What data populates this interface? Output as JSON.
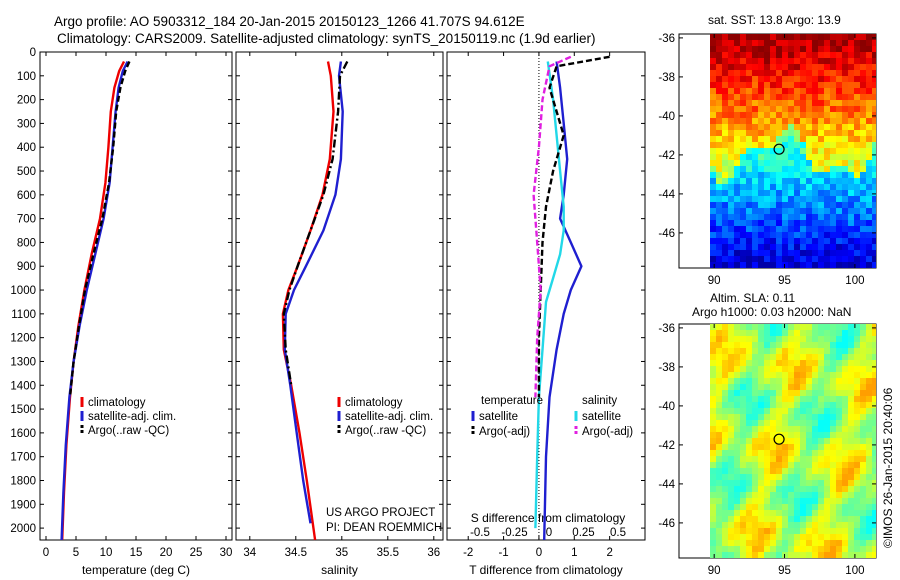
{
  "title_line1": "Argo profile: AO 5903312_184 20-Jan-2015 20150123_1266 41.707S 94.612E",
  "title_line2": "Climatology: CARS2009. Satellite-adjusted climatology: synTS_20150119.nc (1.9d earlier)",
  "credit_line1": "US ARGO PROJECT",
  "credit_line2": "PI: DEAN ROEMMICH",
  "timestamp": "©IMOS 26-Jan-2015 20:40:06",
  "sst_title": "sat. SST: 13.8 Argo: 13.9",
  "sla_title1": "Altim. SLA: 0.11",
  "sla_title2": "Argo h1000: 0.03 h2000: NaN",
  "colors": {
    "climatology": "#ee0000",
    "satellite": "#1f1fd0",
    "argo": "#000000",
    "sal_satellite": "#22d8e8",
    "sal_argo": "#e020e0"
  },
  "chart_data": [
    {
      "type": "line",
      "xlabel": "temperature (deg C)",
      "xlim": [
        -1,
        31
      ],
      "xticks": [
        0,
        5,
        10,
        15,
        20,
        25,
        30
      ],
      "ylim": [
        0,
        2050
      ],
      "yticks": [
        0,
        100,
        200,
        300,
        400,
        500,
        600,
        700,
        800,
        900,
        1000,
        1100,
        1200,
        1300,
        1400,
        1500,
        1600,
        1700,
        1800,
        1900,
        2000
      ],
      "legend": {
        "placement": "lower-middle",
        "entries": [
          "climatology",
          "satellite-adj. clim.",
          "Argo(..raw -QC)"
        ]
      },
      "series": [
        {
          "name": "climatology",
          "color": "#ee0000",
          "dash": "",
          "points": [
            [
              13.0,
              40
            ],
            [
              12.2,
              80
            ],
            [
              11.4,
              150
            ],
            [
              10.8,
              250
            ],
            [
              10.4,
              400
            ],
            [
              9.9,
              550
            ],
            [
              9.0,
              700
            ],
            [
              7.6,
              850
            ],
            [
              6.4,
              1000
            ],
            [
              5.4,
              1150
            ],
            [
              4.6,
              1300
            ],
            [
              4.0,
              1450
            ],
            [
              3.4,
              1650
            ],
            [
              3.0,
              1850
            ],
            [
              2.7,
              2050
            ]
          ]
        },
        {
          "name": "satellite-adj. clim.",
          "color": "#1f1fd0",
          "dash": "",
          "points": [
            [
              13.6,
              40
            ],
            [
              12.8,
              80
            ],
            [
              12.1,
              150
            ],
            [
              11.6,
              250
            ],
            [
              11.1,
              400
            ],
            [
              10.6,
              550
            ],
            [
              9.6,
              700
            ],
            [
              8.2,
              850
            ],
            [
              6.8,
              1000
            ],
            [
              5.6,
              1150
            ],
            [
              4.6,
              1300
            ],
            [
              3.9,
              1450
            ],
            [
              3.3,
              1650
            ],
            [
              2.9,
              1850
            ],
            [
              2.6,
              2050
            ]
          ]
        },
        {
          "name": "Argo(..raw -QC)",
          "color": "#000000",
          "dash": "6,3",
          "points": [
            [
              13.9,
              40
            ],
            [
              13.2,
              80
            ],
            [
              12.4,
              150
            ],
            [
              11.7,
              250
            ],
            [
              11.2,
              400
            ],
            [
              10.5,
              550
            ],
            [
              9.4,
              700
            ],
            [
              7.9,
              850
            ],
            [
              6.5,
              1000
            ],
            [
              5.5,
              1150
            ],
            [
              4.6,
              1300
            ],
            [
              4.0,
              1450
            ]
          ]
        }
      ]
    },
    {
      "type": "line",
      "xlabel": "salinity",
      "xlim": [
        33.85,
        36.1
      ],
      "xticks": [
        34,
        34.5,
        35,
        35.5,
        36
      ],
      "ylim": [
        0,
        2050
      ],
      "legend": {
        "placement": "lower-middle",
        "entries": [
          "climatology",
          "satellite-adj. clim.",
          "Argo(..raw -QC)"
        ]
      },
      "series": [
        {
          "name": "climatology",
          "color": "#ee0000",
          "dash": "",
          "points": [
            [
              34.85,
              40
            ],
            [
              34.88,
              100
            ],
            [
              34.91,
              250
            ],
            [
              34.87,
              450
            ],
            [
              34.79,
              600
            ],
            [
              34.66,
              750
            ],
            [
              34.52,
              900
            ],
            [
              34.42,
              1000
            ],
            [
              34.36,
              1100
            ],
            [
              34.37,
              1250
            ],
            [
              34.45,
              1400
            ],
            [
              34.54,
              1600
            ],
            [
              34.62,
              1800
            ],
            [
              34.71,
              2050
            ]
          ]
        },
        {
          "name": "satellite-adj. clim.",
          "color": "#1f1fd0",
          "dash": "",
          "points": [
            [
              34.99,
              40
            ],
            [
              34.97,
              100
            ],
            [
              35.01,
              250
            ],
            [
              34.99,
              450
            ],
            [
              34.93,
              600
            ],
            [
              34.8,
              750
            ],
            [
              34.61,
              900
            ],
            [
              34.48,
              1000
            ],
            [
              34.39,
              1100
            ],
            [
              34.38,
              1250
            ],
            [
              34.44,
              1400
            ],
            [
              34.51,
              1600
            ],
            [
              34.58,
              1800
            ],
            [
              34.66,
              1980
            ]
          ]
        },
        {
          "name": "Argo(..raw -QC)",
          "color": "#000000",
          "dash": "8,3,2,3",
          "points": [
            [
              35.06,
              40
            ],
            [
              34.98,
              100
            ],
            [
              34.96,
              250
            ],
            [
              34.9,
              450
            ],
            [
              34.8,
              600
            ],
            [
              34.66,
              750
            ],
            [
              34.52,
              900
            ],
            [
              34.43,
              1000
            ],
            [
              34.37,
              1100
            ],
            [
              34.39,
              1250
            ],
            [
              34.45,
              1400
            ]
          ]
        }
      ]
    },
    {
      "type": "line",
      "xlabel": "T difference from climatology",
      "xlabel_top": "S difference from climatology",
      "xlim": [
        -2.6,
        3.0
      ],
      "xticks": [
        -2,
        -1,
        0,
        1,
        2
      ],
      "xticks_top": [
        "-0.5",
        "-0.25",
        "0",
        "0.25",
        "0.5"
      ],
      "ylim": [
        0,
        2050
      ],
      "legend": {
        "placement": "lower-middle",
        "temperature_header": "temperature",
        "salinity_header": "salinity",
        "entries": [
          "satellite",
          "Argo(-adj)",
          "satellite",
          "Argo(-adj)"
        ]
      },
      "series": [
        {
          "name": "satellite",
          "group": "temperature",
          "color": "#1f1fd0",
          "dash": "",
          "points": [
            [
              0.5,
              40
            ],
            [
              0.6,
              150
            ],
            [
              0.7,
              300
            ],
            [
              0.8,
              450
            ],
            [
              0.7,
              600
            ],
            [
              0.6,
              700
            ],
            [
              0.9,
              800
            ],
            [
              1.2,
              900
            ],
            [
              0.9,
              1000
            ],
            [
              0.7,
              1100
            ],
            [
              0.5,
              1250
            ],
            [
              0.3,
              1450
            ],
            [
              0.2,
              1700
            ],
            [
              0.15,
              2050
            ]
          ]
        },
        {
          "name": "satellite",
          "group": "salinity",
          "color": "#22d8e8",
          "dash": "",
          "points": [
            [
              0.25,
              40
            ],
            [
              0.4,
              200
            ],
            [
              0.5,
              350
            ],
            [
              0.6,
              500
            ],
            [
              0.7,
              650
            ],
            [
              0.7,
              750
            ],
            [
              0.6,
              850
            ],
            [
              0.4,
              950
            ],
            [
              0.2,
              1050
            ],
            [
              0.1,
              1250
            ],
            [
              0.0,
              1450
            ],
            [
              -0.05,
              1700
            ],
            [
              -0.1,
              2000
            ]
          ]
        },
        {
          "name": "Argo(-adj)",
          "group": "temperature",
          "color": "#000000",
          "dash": "6,3",
          "points": [
            [
              2.0,
              20
            ],
            [
              0.5,
              60
            ],
            [
              0.3,
              150
            ],
            [
              0.5,
              250
            ],
            [
              0.7,
              350
            ],
            [
              0.4,
              500
            ],
            [
              0.2,
              650
            ],
            [
              0.1,
              800
            ],
            [
              0.05,
              1000
            ],
            [
              0.0,
              1200
            ],
            [
              0.0,
              1450
            ]
          ]
        },
        {
          "name": "Argo(-adj)",
          "group": "salinity",
          "color": "#e020e0",
          "dash": "6,3",
          "points": [
            [
              0.9,
              20
            ],
            [
              0.3,
              60
            ],
            [
              0.1,
              200
            ],
            [
              0.0,
              400
            ],
            [
              -0.15,
              600
            ],
            [
              -0.05,
              800
            ],
            [
              0.05,
              1000
            ],
            [
              -0.05,
              1200
            ],
            [
              -0.1,
              1450
            ]
          ]
        }
      ]
    },
    {
      "type": "heatmap",
      "title": "sat. SST: 13.8 Argo: 13.9",
      "xlim": [
        87.5,
        101.5
      ],
      "xticks": [
        90,
        95,
        100
      ],
      "ylim": [
        -47.8,
        -35.8
      ],
      "yticks": [
        -36,
        -38,
        -40,
        -42,
        -44,
        -46
      ],
      "marker": {
        "lon": 94.612,
        "lat": -41.707
      }
    },
    {
      "type": "heatmap",
      "xlim": [
        87.5,
        101.5
      ],
      "xticks": [
        90,
        95,
        100
      ],
      "ylim": [
        -47.8,
        -35.8
      ],
      "yticks": [
        -36,
        -38,
        -40,
        -42,
        -44,
        -46
      ],
      "marker": {
        "lon": 94.612,
        "lat": -41.707
      }
    }
  ]
}
